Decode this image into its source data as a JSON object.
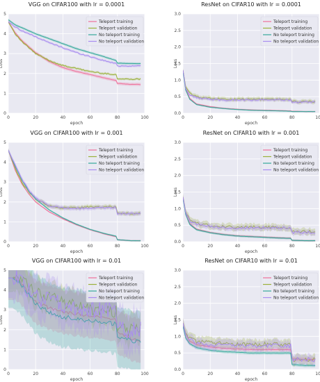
{
  "figure": {
    "background": "#ffffff",
    "panel_background": "#e9e9f2",
    "grid_color": "#ffffff"
  },
  "series_colors": {
    "Teleport training": "#ef6f9a",
    "Teleport validation": "#9bb13a",
    "No teleport training": "#35a99a",
    "No teleport validation": "#a98cf0"
  },
  "chart_data": [
    {
      "type": "line",
      "title": "VGG on CIFAR100 with lr = 0.0001",
      "xlabel": "epoch",
      "ylabel": "Loss",
      "xlim": [
        0,
        100
      ],
      "ylim": [
        0,
        5
      ],
      "xticks": [
        "0",
        "20",
        "40",
        "60",
        "80",
        "100"
      ],
      "yticks": [
        "0",
        "1",
        "2",
        "3",
        "4",
        "5"
      ],
      "grid": true,
      "legend": "top-right",
      "x": [
        0,
        5,
        10,
        20,
        30,
        40,
        50,
        60,
        70,
        79,
        80,
        90,
        97
      ],
      "series": [
        {
          "name": "Teleport training",
          "values": [
            4.6,
            4.05,
            3.65,
            3.05,
            2.6,
            2.3,
            2.1,
            1.95,
            1.78,
            1.65,
            1.5,
            1.45,
            1.45
          ],
          "band": 0.08
        },
        {
          "name": "Teleport validation",
          "values": [
            4.6,
            4.0,
            3.6,
            3.0,
            2.65,
            2.4,
            2.25,
            2.1,
            2.0,
            1.95,
            1.72,
            1.72,
            1.72
          ],
          "band": 0.06
        },
        {
          "name": "No teleport training",
          "values": [
            4.7,
            4.45,
            4.3,
            4.0,
            3.75,
            3.5,
            3.25,
            3.05,
            2.85,
            2.65,
            2.52,
            2.5,
            2.5
          ],
          "band": 0.06
        },
        {
          "name": "No teleport validation",
          "values": [
            4.6,
            4.35,
            4.15,
            3.85,
            3.55,
            3.3,
            3.05,
            2.85,
            2.65,
            2.5,
            2.38,
            2.38,
            2.38
          ],
          "band": 0.06
        }
      ]
    },
    {
      "type": "line",
      "title": "ResNet on CIFAR10 with lr = 0.0001",
      "xlabel": "epoch",
      "ylabel": "Loss",
      "xlim": [
        0,
        100
      ],
      "ylim": [
        0,
        3
      ],
      "xticks": [
        "0",
        "20",
        "40",
        "60",
        "80",
        "100"
      ],
      "yticks": [
        "0.0",
        "0.5",
        "1.0",
        "1.5",
        "2.0",
        "2.5",
        "3.0"
      ],
      "grid": true,
      "legend": "top-right",
      "x": [
        0,
        2,
        5,
        10,
        20,
        30,
        40,
        50,
        60,
        70,
        79,
        80,
        90,
        97
      ],
      "series": [
        {
          "name": "Teleport training",
          "values": [
            1.3,
            0.75,
            0.45,
            0.28,
            0.2,
            0.15,
            0.12,
            0.1,
            0.09,
            0.08,
            0.07,
            0.06,
            0.05,
            0.05
          ],
          "band": 0.02
        },
        {
          "name": "Teleport validation",
          "values": [
            1.3,
            0.8,
            0.6,
            0.5,
            0.45,
            0.42,
            0.42,
            0.42,
            0.42,
            0.42,
            0.42,
            0.35,
            0.35,
            0.35
          ],
          "band": 0.06
        },
        {
          "name": "No teleport training",
          "values": [
            1.25,
            0.7,
            0.42,
            0.26,
            0.18,
            0.14,
            0.11,
            0.09,
            0.08,
            0.07,
            0.06,
            0.05,
            0.05,
            0.05
          ],
          "band": 0.02
        },
        {
          "name": "No teleport validation",
          "values": [
            1.3,
            0.75,
            0.55,
            0.47,
            0.42,
            0.4,
            0.4,
            0.4,
            0.4,
            0.4,
            0.4,
            0.34,
            0.34,
            0.34
          ],
          "band": 0.05
        }
      ]
    },
    {
      "type": "line",
      "title": "VGG on CIFAR100 with lr = 0.001",
      "xlabel": "epoch",
      "ylabel": "Loss",
      "xlim": [
        0,
        100
      ],
      "ylim": [
        0,
        5
      ],
      "xticks": [
        "0",
        "20",
        "40",
        "60",
        "80",
        "100"
      ],
      "yticks": [
        "0",
        "1",
        "2",
        "3",
        "4",
        "5"
      ],
      "grid": true,
      "legend": "top-right",
      "x": [
        0,
        5,
        10,
        15,
        20,
        30,
        40,
        50,
        60,
        70,
        79,
        80,
        90,
        97
      ],
      "series": [
        {
          "name": "Teleport training",
          "values": [
            4.6,
            3.6,
            2.9,
            2.4,
            2.0,
            1.5,
            1.15,
            0.85,
            0.6,
            0.4,
            0.25,
            0.1,
            0.05,
            0.05
          ],
          "band": 0.04
        },
        {
          "name": "Teleport validation",
          "values": [
            4.6,
            3.7,
            3.0,
            2.5,
            2.15,
            1.8,
            1.7,
            1.72,
            1.75,
            1.75,
            1.78,
            1.42,
            1.42,
            1.42
          ],
          "band": 0.1
        },
        {
          "name": "No teleport training",
          "values": [
            4.6,
            3.8,
            3.1,
            2.55,
            2.15,
            1.6,
            1.2,
            0.88,
            0.62,
            0.42,
            0.28,
            0.1,
            0.05,
            0.05
          ],
          "band": 0.04
        },
        {
          "name": "No teleport validation",
          "values": [
            4.6,
            3.85,
            3.15,
            2.6,
            2.2,
            1.8,
            1.7,
            1.68,
            1.7,
            1.72,
            1.72,
            1.42,
            1.42,
            1.42
          ],
          "band": 0.1
        }
      ]
    },
    {
      "type": "line",
      "title": "ResNet on CIFAR10 with lr = 0.001",
      "xlabel": "epoch",
      "ylabel": "Loss",
      "xlim": [
        0,
        100
      ],
      "ylim": [
        0,
        3
      ],
      "xticks": [
        "0",
        "20",
        "40",
        "60",
        "80",
        "100"
      ],
      "yticks": [
        "0.0",
        "0.5",
        "1.0",
        "1.5",
        "2.0",
        "2.5",
        "3.0"
      ],
      "grid": true,
      "legend": "top-right",
      "x": [
        0,
        2,
        5,
        10,
        20,
        30,
        40,
        50,
        60,
        70,
        79,
        80,
        90,
        97
      ],
      "series": [
        {
          "name": "Teleport training",
          "values": [
            1.35,
            0.85,
            0.55,
            0.38,
            0.28,
            0.22,
            0.18,
            0.16,
            0.14,
            0.12,
            0.11,
            0.04,
            0.03,
            0.03
          ],
          "band": 0.03
        },
        {
          "name": "Teleport validation",
          "values": [
            1.35,
            0.9,
            0.65,
            0.55,
            0.48,
            0.45,
            0.44,
            0.44,
            0.44,
            0.44,
            0.44,
            0.3,
            0.3,
            0.3
          ],
          "band": 0.1
        },
        {
          "name": "No teleport training",
          "values": [
            1.3,
            0.82,
            0.52,
            0.36,
            0.27,
            0.21,
            0.17,
            0.15,
            0.13,
            0.11,
            0.1,
            0.04,
            0.03,
            0.03
          ],
          "band": 0.03
        },
        {
          "name": "No teleport validation",
          "values": [
            1.35,
            0.88,
            0.62,
            0.52,
            0.46,
            0.43,
            0.42,
            0.42,
            0.42,
            0.42,
            0.42,
            0.28,
            0.28,
            0.28
          ],
          "band": 0.08
        }
      ]
    },
    {
      "type": "line",
      "title": "VGG on CIFAR100 with lr = 0.01",
      "xlabel": "epoch",
      "ylabel": "Loss",
      "xlim": [
        0,
        100
      ],
      "ylim": [
        0,
        5
      ],
      "xticks": [
        "0",
        "20",
        "40",
        "60",
        "80",
        "100"
      ],
      "yticks": [
        "0",
        "1",
        "2",
        "3",
        "4",
        "5"
      ],
      "grid": true,
      "legend": "top-right",
      "x": [
        0,
        5,
        10,
        20,
        30,
        40,
        50,
        60,
        70,
        79,
        80,
        90,
        97
      ],
      "series": [
        {
          "name": "Teleport training",
          "values": [
            4.6,
            4.6,
            4.3,
            3.4,
            3.1,
            2.9,
            2.8,
            2.7,
            2.6,
            2.5,
            1.9,
            1.55,
            1.45
          ],
          "band": 1.1
        },
        {
          "name": "Teleport validation",
          "values": [
            4.6,
            4.6,
            4.45,
            3.9,
            3.65,
            3.4,
            3.2,
            3.0,
            2.9,
            2.9,
            1.95,
            2.0,
            2.1
          ],
          "band": 0.7
        },
        {
          "name": "No teleport training",
          "values": [
            4.6,
            4.6,
            4.2,
            3.3,
            2.9,
            2.65,
            2.55,
            2.45,
            2.35,
            2.3,
            1.65,
            1.45,
            1.4
          ],
          "band": 1.5
        },
        {
          "name": "No teleport validation",
          "values": [
            4.6,
            4.6,
            4.35,
            3.7,
            3.45,
            3.3,
            3.15,
            3.05,
            2.95,
            2.9,
            2.0,
            2.0,
            2.0
          ],
          "band": 1.0
        }
      ]
    },
    {
      "type": "line",
      "title": "ResNet on CIFAR10 with lr = 0.01",
      "xlabel": "epoch",
      "ylabel": "Loss",
      "xlim": [
        0,
        100
      ],
      "ylim": [
        0,
        3
      ],
      "xticks": [
        "0",
        "20",
        "40",
        "60",
        "80",
        "100"
      ],
      "yticks": [
        "0.0",
        "0.5",
        "1.0",
        "1.5",
        "2.0",
        "2.5",
        "3.0"
      ],
      "grid": true,
      "legend": "top-right",
      "x": [
        0,
        2,
        5,
        10,
        20,
        30,
        40,
        50,
        60,
        70,
        79,
        80,
        90,
        97
      ],
      "series": [
        {
          "name": "Teleport training",
          "values": [
            1.4,
            1.05,
            0.85,
            0.75,
            0.68,
            0.64,
            0.62,
            0.6,
            0.6,
            0.6,
            0.6,
            0.32,
            0.3,
            0.3
          ],
          "band": 0.06
        },
        {
          "name": "Teleport validation",
          "values": [
            1.4,
            1.1,
            0.95,
            0.85,
            0.8,
            0.78,
            0.77,
            0.76,
            0.76,
            0.76,
            0.76,
            0.3,
            0.3,
            0.3
          ],
          "band": 0.15
        },
        {
          "name": "No teleport training",
          "values": [
            1.3,
            0.95,
            0.78,
            0.66,
            0.58,
            0.54,
            0.52,
            0.5,
            0.5,
            0.5,
            0.5,
            0.15,
            0.12,
            0.12
          ],
          "band": 0.05
        },
        {
          "name": "No teleport validation",
          "values": [
            1.4,
            1.05,
            0.9,
            0.8,
            0.75,
            0.73,
            0.72,
            0.72,
            0.72,
            0.72,
            0.72,
            0.32,
            0.3,
            0.3
          ],
          "band": 0.15
        }
      ]
    }
  ]
}
